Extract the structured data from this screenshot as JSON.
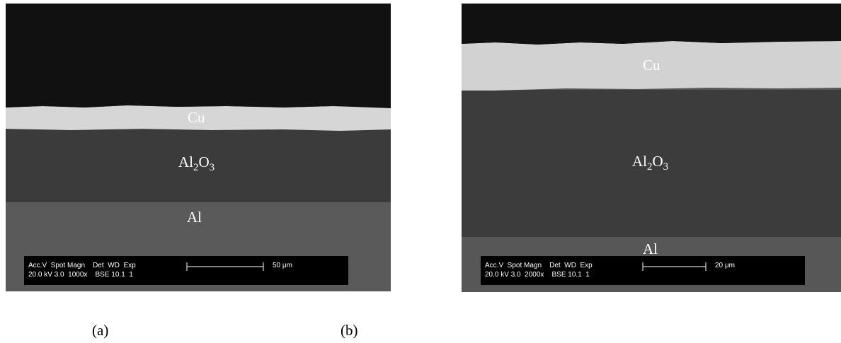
{
  "panels": [
    {
      "caption": "(a)",
      "cu": "Cu",
      "oxide": [
        "Al",
        "2",
        "O",
        "3"
      ],
      "al": "Al",
      "info_header": "Acc.V  Spot Magn    Det  WD  Exp",
      "info_values": "20.0 kV 3.0  1000x    BSE 10.1  1",
      "scale": "50 μm"
    },
    {
      "caption": "(b)",
      "cu": "Cu",
      "oxide": [
        "Al",
        "2",
        "O",
        "3"
      ],
      "al": "Al",
      "info_header": "Acc.V  Spot Magn    Det  WD  Exp",
      "info_values": "20.0 kV 3.0  2000x    BSE 10.1  1",
      "scale": "20 μm"
    }
  ]
}
